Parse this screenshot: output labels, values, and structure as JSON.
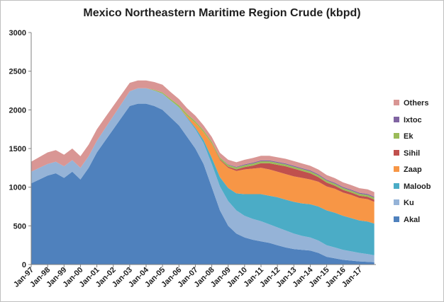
{
  "chart_data": {
    "type": "area",
    "stacked": true,
    "title": "Mexico Northeastern Maritime Region Crude (kbpd)",
    "xlabel": "",
    "ylabel": "",
    "ylim": [
      0,
      3000
    ],
    "y_ticks": [
      "0",
      "500",
      "1000",
      "1500",
      "2000",
      "2500",
      "3000"
    ],
    "x_ticks": [
      "Jan-97",
      "Jan-98",
      "Jan-99",
      "Jan-00",
      "Jan-01",
      "Jan-02",
      "Jan-03",
      "Jan-04",
      "Jan-05",
      "Jan-06",
      "Jan-07",
      "Jan-08",
      "Jan-09",
      "Jan-10",
      "Jan-11",
      "Jan-12",
      "Jan-13",
      "Jan-14",
      "Jan-15",
      "Jan-16",
      "Jan-17"
    ],
    "x": [
      1997,
      1997.5,
      1998,
      1998.5,
      1999,
      1999.5,
      2000,
      2000.5,
      2001,
      2001.5,
      2002,
      2002.5,
      2003,
      2003.5,
      2004,
      2004.5,
      2005,
      2005.5,
      2006,
      2006.5,
      2007,
      2007.5,
      2008,
      2008.5,
      2009,
      2009.5,
      2010,
      2010.5,
      2011,
      2011.5,
      2012,
      2012.5,
      2013,
      2013.5,
      2014,
      2014.5,
      2015,
      2015.5,
      2016,
      2016.5,
      2017,
      2017.5,
      2017.9
    ],
    "grid": false,
    "legend_position": "right",
    "series": [
      {
        "name": "Akal",
        "color": "#4f81bd",
        "values": [
          1050,
          1100,
          1150,
          1180,
          1120,
          1200,
          1100,
          1250,
          1450,
          1600,
          1750,
          1900,
          2050,
          2080,
          2080,
          2050,
          2000,
          1900,
          1800,
          1650,
          1500,
          1300,
          1000,
          700,
          500,
          400,
          350,
          320,
          300,
          280,
          250,
          220,
          200,
          190,
          180,
          150,
          100,
          80,
          60,
          50,
          40,
          35,
          30
        ]
      },
      {
        "name": "Ku",
        "color": "#95b3d7",
        "values": [
          150,
          150,
          150,
          150,
          150,
          150,
          150,
          150,
          150,
          160,
          170,
          180,
          190,
          200,
          200,
          200,
          210,
          220,
          230,
          240,
          250,
          270,
          300,
          310,
          320,
          300,
          280,
          270,
          260,
          240,
          230,
          220,
          200,
          180,
          170,
          160,
          150,
          140,
          130,
          120,
          110,
          100,
          90
        ]
      },
      {
        "name": "Maloob",
        "color": "#4bacc6",
        "values": [
          0,
          0,
          0,
          0,
          0,
          0,
          0,
          0,
          0,
          0,
          0,
          0,
          0,
          0,
          0,
          0,
          0,
          0,
          5,
          10,
          20,
          40,
          80,
          120,
          170,
          220,
          280,
          320,
          350,
          370,
          390,
          400,
          410,
          420,
          430,
          440,
          450,
          450,
          440,
          430,
          420,
          420,
          410
        ]
      },
      {
        "name": "Zaap",
        "color": "#f79646",
        "values": [
          0,
          0,
          0,
          0,
          0,
          0,
          0,
          0,
          0,
          0,
          0,
          0,
          0,
          0,
          0,
          0,
          0,
          0,
          0,
          20,
          60,
          100,
          180,
          220,
          260,
          290,
          320,
          330,
          340,
          340,
          330,
          330,
          330,
          330,
          320,
          320,
          310,
          310,
          300,
          300,
          290,
          290,
          280
        ]
      },
      {
        "name": "Sihil",
        "color": "#c0504d",
        "values": [
          0,
          0,
          0,
          0,
          0,
          0,
          0,
          0,
          0,
          0,
          0,
          0,
          0,
          0,
          0,
          0,
          0,
          0,
          0,
          0,
          0,
          0,
          5,
          10,
          15,
          20,
          30,
          40,
          60,
          80,
          90,
          100,
          100,
          90,
          80,
          60,
          50,
          40,
          35,
          30,
          30,
          30,
          30
        ]
      },
      {
        "name": "Ek",
        "color": "#9bbb59",
        "values": [
          0,
          0,
          0,
          0,
          0,
          0,
          0,
          0,
          0,
          0,
          0,
          0,
          0,
          0,
          0,
          10,
          15,
          20,
          25,
          25,
          25,
          25,
          25,
          25,
          25,
          25,
          25,
          25,
          25,
          25,
          25,
          25,
          25,
          25,
          25,
          25,
          25,
          25,
          25,
          25,
          25,
          25,
          25
        ]
      },
      {
        "name": "Ixtoc",
        "color": "#8064a2",
        "values": [
          0,
          0,
          0,
          0,
          0,
          0,
          0,
          0,
          0,
          0,
          0,
          0,
          0,
          0,
          0,
          0,
          0,
          0,
          0,
          0,
          0,
          0,
          0,
          0,
          5,
          8,
          10,
          12,
          12,
          12,
          12,
          12,
          12,
          12,
          12,
          12,
          12,
          12,
          12,
          12,
          12,
          12,
          12
        ]
      },
      {
        "name": "Others",
        "color": "#d99694",
        "values": [
          130,
          140,
          150,
          150,
          150,
          150,
          150,
          150,
          150,
          140,
          130,
          120,
          110,
          100,
          100,
          100,
          100,
          90,
          80,
          75,
          70,
          65,
          60,
          60,
          60,
          60,
          60,
          60,
          60,
          60,
          60,
          60,
          60,
          60,
          60,
          60,
          60,
          60,
          60,
          60,
          60,
          60,
          60
        ]
      }
    ]
  }
}
